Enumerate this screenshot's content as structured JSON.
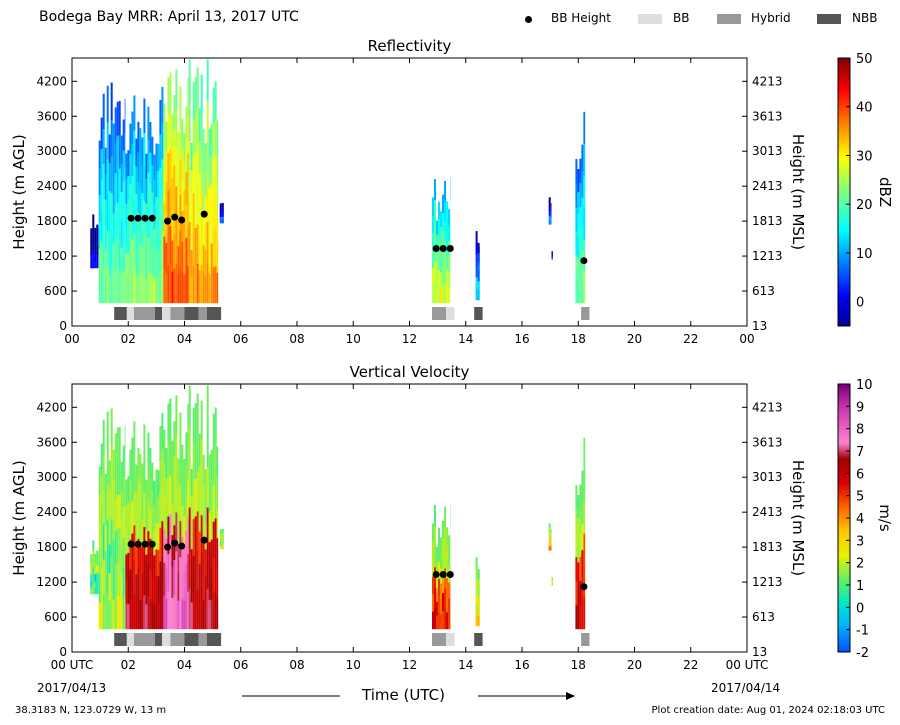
{
  "header": {
    "title": "Bodega Bay MRR:  April 13, 2017 UTC",
    "legend": [
      {
        "label": "BB Height",
        "kind": "dot",
        "color": "#000000"
      },
      {
        "label": "BB",
        "kind": "box",
        "color": "#dddddd"
      },
      {
        "label": "Hybrid",
        "kind": "box",
        "color": "#999999"
      },
      {
        "label": "NBB",
        "kind": "box",
        "color": "#555555"
      }
    ]
  },
  "footer": {
    "location": "38.3183 N, 123.0729 W, 13 m",
    "created": "Plot creation date: Aug 01, 2024 02:18:03 UTC",
    "xlabel": "Time (UTC)",
    "start_date": "2017/04/13",
    "end_date": "2017/04/14"
  },
  "chart_data": [
    {
      "type": "heatmap",
      "title": "Reflectivity",
      "ylabel": "Height (m AGL)",
      "ylabel_right": "Height (m MSL)",
      "xlim": [
        0,
        24
      ],
      "ylim": [
        0,
        4600
      ],
      "x_ticks": [
        "00",
        "02",
        "04",
        "06",
        "08",
        "10",
        "12",
        "14",
        "16",
        "18",
        "20",
        "22",
        "00"
      ],
      "y_ticks": [
        0,
        600,
        1200,
        1800,
        2400,
        3000,
        3600,
        4200
      ],
      "y_ticks_right": [
        "13",
        "613",
        "1213",
        "1813",
        "2413",
        "3013",
        "3613",
        "4213"
      ],
      "colorbar": {
        "label": "dBZ",
        "range": [
          -5,
          50
        ],
        "ticks": [
          "0",
          "10",
          "20",
          "30",
          "40",
          "50"
        ],
        "tick_values": [
          0,
          10,
          20,
          30,
          40,
          50
        ],
        "scheme": "jet"
      },
      "echo_columns": [
        {
          "start": 0.65,
          "end": 0.95,
          "top": 1950,
          "base": 1000,
          "core": 2
        },
        {
          "start": 0.95,
          "end": 1.9,
          "top": 4300,
          "base": 400,
          "core": 22
        },
        {
          "start": 1.9,
          "end": 3.25,
          "top": 4200,
          "base": 400,
          "core": 24
        },
        {
          "start": 3.25,
          "end": 4.15,
          "top": 4600,
          "base": 400,
          "core": 40
        },
        {
          "start": 4.15,
          "end": 5.2,
          "top": 4600,
          "base": 400,
          "core": 36
        },
        {
          "start": 5.25,
          "end": 5.4,
          "top": 2250,
          "base": 1770,
          "core": 8
        },
        {
          "start": 12.8,
          "end": 13.45,
          "top": 2550,
          "base": 400,
          "core": 28
        },
        {
          "start": 14.35,
          "end": 14.5,
          "top": 1650,
          "base": 450,
          "core": 14
        },
        {
          "start": 16.95,
          "end": 17.05,
          "top": 2250,
          "base": 1750,
          "core": 10
        },
        {
          "start": 17.05,
          "end": 17.1,
          "top": 1300,
          "base": 1150,
          "core": 6
        },
        {
          "start": 17.9,
          "end": 18.25,
          "top": 3750,
          "base": 400,
          "core": 22
        }
      ],
      "bb_height_points": [
        {
          "x": 2.1,
          "y": 1850
        },
        {
          "x": 2.35,
          "y": 1850
        },
        {
          "x": 2.6,
          "y": 1850
        },
        {
          "x": 2.85,
          "y": 1850
        },
        {
          "x": 3.4,
          "y": 1800
        },
        {
          "x": 3.65,
          "y": 1870
        },
        {
          "x": 3.9,
          "y": 1820
        },
        {
          "x": 4.7,
          "y": 1920
        },
        {
          "x": 12.95,
          "y": 1330
        },
        {
          "x": 13.2,
          "y": 1330
        },
        {
          "x": 13.45,
          "y": 1330
        },
        {
          "x": 18.2,
          "y": 1120
        }
      ],
      "bb_type_segments": [
        {
          "start": 1.5,
          "end": 1.95,
          "type": "NBB"
        },
        {
          "start": 1.95,
          "end": 2.2,
          "type": "BB"
        },
        {
          "start": 2.2,
          "end": 2.95,
          "type": "Hybrid"
        },
        {
          "start": 2.95,
          "end": 3.2,
          "type": "NBB"
        },
        {
          "start": 3.2,
          "end": 3.5,
          "type": "BB"
        },
        {
          "start": 3.5,
          "end": 4.0,
          "type": "Hybrid"
        },
        {
          "start": 4.0,
          "end": 4.5,
          "type": "NBB"
        },
        {
          "start": 4.5,
          "end": 4.8,
          "type": "Hybrid"
        },
        {
          "start": 4.8,
          "end": 5.3,
          "type": "NBB"
        },
        {
          "start": 12.8,
          "end": 13.3,
          "type": "Hybrid"
        },
        {
          "start": 13.3,
          "end": 13.6,
          "type": "BB"
        },
        {
          "start": 14.3,
          "end": 14.6,
          "type": "NBB"
        },
        {
          "start": 18.1,
          "end": 18.4,
          "type": "Hybrid"
        }
      ]
    },
    {
      "type": "heatmap",
      "title": "Vertical Velocity",
      "ylabel": "Height (m AGL)",
      "ylabel_right": "Height (m MSL)",
      "xlim": [
        0,
        24
      ],
      "ylim": [
        0,
        4600
      ],
      "x_ticks": [
        "00 UTC",
        "02",
        "04",
        "06",
        "08",
        "10",
        "12",
        "14",
        "16",
        "18",
        "20",
        "22",
        "00 UTC"
      ],
      "y_ticks": [
        0,
        600,
        1200,
        1800,
        2400,
        3000,
        3600,
        4200
      ],
      "y_ticks_right": [
        "13",
        "613",
        "1213",
        "1813",
        "2413",
        "3013",
        "3613",
        "4213"
      ],
      "colorbar": {
        "label": "m/s",
        "range": [
          -2,
          10
        ],
        "ticks": [
          "-2",
          "-1",
          "0",
          "1",
          "2",
          "3",
          "4",
          "5",
          "6",
          "7",
          "8",
          "9",
          "10"
        ],
        "tick_values": [
          -2,
          -1,
          0,
          1,
          2,
          3,
          4,
          5,
          6,
          7,
          8,
          9,
          10
        ],
        "scheme": "velocity"
      },
      "echo_columns": [
        {
          "start": 0.65,
          "end": 0.95,
          "top": 1950,
          "base": 1000,
          "core": 1
        },
        {
          "start": 0.95,
          "end": 1.9,
          "top": 4300,
          "base": 400,
          "core": 2
        },
        {
          "start": 1.9,
          "end": 3.25,
          "top": 4200,
          "base": 400,
          "core": 6.5
        },
        {
          "start": 3.25,
          "end": 4.15,
          "top": 4600,
          "base": 400,
          "core": 8
        },
        {
          "start": 4.15,
          "end": 5.2,
          "top": 4600,
          "base": 400,
          "core": 6.5
        },
        {
          "start": 5.25,
          "end": 5.4,
          "top": 2250,
          "base": 1770,
          "core": 2
        },
        {
          "start": 12.8,
          "end": 13.45,
          "top": 2550,
          "base": 400,
          "core": 5.5
        },
        {
          "start": 14.35,
          "end": 14.5,
          "top": 1650,
          "base": 450,
          "core": 3
        },
        {
          "start": 16.95,
          "end": 17.05,
          "top": 2250,
          "base": 1750,
          "core": 4
        },
        {
          "start": 17.05,
          "end": 17.1,
          "top": 1300,
          "base": 1150,
          "core": 3
        },
        {
          "start": 17.9,
          "end": 18.25,
          "top": 3750,
          "base": 400,
          "core": 6
        }
      ],
      "bb_height_points": [
        {
          "x": 2.1,
          "y": 1850
        },
        {
          "x": 2.35,
          "y": 1850
        },
        {
          "x": 2.6,
          "y": 1850
        },
        {
          "x": 2.85,
          "y": 1850
        },
        {
          "x": 3.4,
          "y": 1800
        },
        {
          "x": 3.65,
          "y": 1870
        },
        {
          "x": 3.9,
          "y": 1820
        },
        {
          "x": 4.7,
          "y": 1920
        },
        {
          "x": 12.95,
          "y": 1330
        },
        {
          "x": 13.2,
          "y": 1330
        },
        {
          "x": 13.45,
          "y": 1330
        },
        {
          "x": 18.2,
          "y": 1120
        }
      ],
      "bb_type_segments": [
        {
          "start": 1.5,
          "end": 1.95,
          "type": "NBB"
        },
        {
          "start": 1.95,
          "end": 2.2,
          "type": "BB"
        },
        {
          "start": 2.2,
          "end": 2.95,
          "type": "Hybrid"
        },
        {
          "start": 2.95,
          "end": 3.2,
          "type": "NBB"
        },
        {
          "start": 3.2,
          "end": 3.5,
          "type": "BB"
        },
        {
          "start": 3.5,
          "end": 4.0,
          "type": "Hybrid"
        },
        {
          "start": 4.0,
          "end": 4.5,
          "type": "NBB"
        },
        {
          "start": 4.5,
          "end": 4.8,
          "type": "Hybrid"
        },
        {
          "start": 4.8,
          "end": 5.3,
          "type": "NBB"
        },
        {
          "start": 12.8,
          "end": 13.3,
          "type": "Hybrid"
        },
        {
          "start": 13.3,
          "end": 13.6,
          "type": "BB"
        },
        {
          "start": 14.3,
          "end": 14.6,
          "type": "NBB"
        },
        {
          "start": 18.1,
          "end": 18.4,
          "type": "Hybrid"
        }
      ]
    }
  ]
}
